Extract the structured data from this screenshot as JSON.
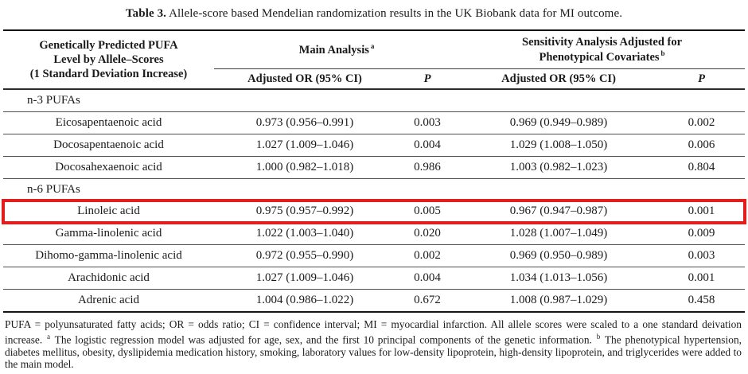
{
  "caption": {
    "label": "Table 3.",
    "text": "Allele-score based Mendelian randomization results in the UK Biobank data for MI outcome."
  },
  "table": {
    "col1_header": "Genetically Predicted PUFA\nLevel by Allele–Scores\n(1 Standard Deviation Increase)",
    "groups": [
      {
        "label": "Main Analysis",
        "sup": "a"
      },
      {
        "label": "Sensitivity Analysis Adjusted for\nPhenotypical Covariates",
        "sup": "b"
      }
    ],
    "subheaders": {
      "or_main": "Adjusted OR (95% CI)",
      "p_main": "P",
      "or_sens": "Adjusted OR (95% CI)",
      "p_sens": "P"
    },
    "rows": [
      {
        "type": "section",
        "name": "n-3 PUFAs"
      },
      {
        "type": "data",
        "name": "Eicosapentaenoic acid",
        "or_main": "0.973 (0.956–0.991)",
        "p_main": "0.003",
        "or_sens": "0.969 (0.949–0.989)",
        "p_sens": "0.002"
      },
      {
        "type": "data",
        "name": "Docosapentaenoic acid",
        "or_main": "1.027 (1.009–1.046)",
        "p_main": "0.004",
        "or_sens": "1.029 (1.008–1.050)",
        "p_sens": "0.006"
      },
      {
        "type": "data",
        "name": "Docosahexaenoic acid",
        "or_main": "1.000 (0.982–1.018)",
        "p_main": "0.986",
        "or_sens": "1.003 (0.982–1.023)",
        "p_sens": "0.804"
      },
      {
        "type": "section",
        "name": "n-6 PUFAs"
      },
      {
        "type": "data",
        "name": "Linoleic acid",
        "or_main": "0.975 (0.957–0.992)",
        "p_main": "0.005",
        "or_sens": "0.967 (0.947–0.987)",
        "p_sens": "0.001",
        "highlighted": true
      },
      {
        "type": "data",
        "name": "Gamma-linolenic acid",
        "or_main": "1.022 (1.003–1.040)",
        "p_main": "0.020",
        "or_sens": "1.028 (1.007–1.049)",
        "p_sens": "0.009"
      },
      {
        "type": "data",
        "name": "Dihomo-gamma-linolenic acid",
        "or_main": "0.972 (0.955–0.990)",
        "p_main": "0.002",
        "or_sens": "0.969 (0.950–0.989)",
        "p_sens": "0.003"
      },
      {
        "type": "data",
        "name": "Arachidonic acid",
        "or_main": "1.027 (1.009–1.046)",
        "p_main": "0.004",
        "or_sens": "1.034 (1.013–1.056)",
        "p_sens": "0.001"
      },
      {
        "type": "data",
        "name": "Adrenic acid",
        "or_main": "1.004 (0.986–1.022)",
        "p_main": "0.672",
        "or_sens": "1.008 (0.987–1.029)",
        "p_sens": "0.458"
      }
    ],
    "highlight": {
      "row": "Linoleic acid",
      "color": "#e31c1c"
    }
  },
  "footnote": {
    "part1": "PUFA = polyunsaturated fatty acids; OR = odds ratio; CI = confidence interval; MI = myocardial infarction. All allele scores were scaled to a one standard deivation increase.",
    "sup_a": "a",
    "part2": "The logistic regression model was adjusted for age, sex, and the first 10 principal components of the genetic information.",
    "sup_b": "b",
    "part3": "The phenotypical hypertension, diabetes mellitus, obesity, dyslipidemia medication history, smoking, laboratory values for low-density lipoprotein, high-density lipoprotein, and triglycerides were added to the main model."
  }
}
